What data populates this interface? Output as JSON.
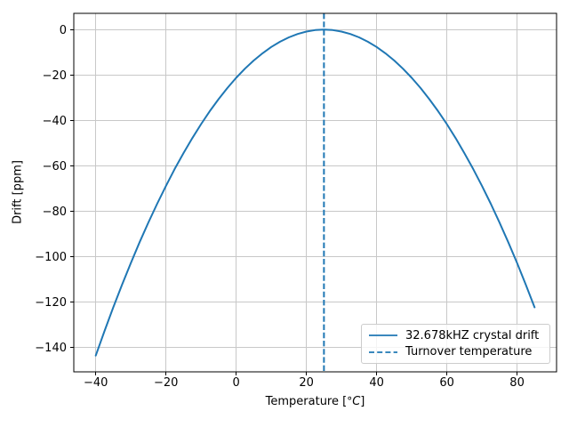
{
  "chart_data": {
    "type": "line",
    "title": "",
    "xlabel": "Temperature [°C]",
    "xlabel_parts": {
      "prefix": "Temperature [",
      "degree": "°",
      "unit": "C",
      "suffix": "]"
    },
    "ylabel": "Drift [ppm]",
    "xlim": [
      -46.25,
      91.25
    ],
    "ylim": [
      -150.83,
      7.18
    ],
    "grid": true,
    "legend_position": "lower right",
    "xticks": {
      "values": [
        -40,
        -20,
        0,
        20,
        40,
        60,
        80
      ],
      "labels": [
        "−40",
        "−20",
        "0",
        "20",
        "40",
        "60",
        "80"
      ]
    },
    "yticks": {
      "values": [
        0,
        -20,
        -40,
        -60,
        -80,
        -100,
        -120,
        -140
      ],
      "labels": [
        "0",
        "−20",
        "−40",
        "−60",
        "−80",
        "−100",
        "−120",
        "−140"
      ]
    },
    "series": [
      {
        "name": "32.678kHZ crystal drift",
        "type": "line",
        "linestyle": "solid",
        "color": "#1f77b4",
        "x": [
          -40,
          -37.5,
          -35,
          -32.5,
          -30,
          -27.5,
          -25,
          -22.5,
          -20,
          -17.5,
          -15,
          -12.5,
          -10,
          -7.5,
          -5,
          -2.5,
          0,
          2.5,
          5,
          7.5,
          10,
          12.5,
          15,
          17.5,
          20,
          22.5,
          25,
          27.5,
          30,
          32.5,
          35,
          37.5,
          40,
          42.5,
          45,
          47.5,
          50,
          52.5,
          55,
          57.5,
          60,
          62.5,
          65,
          67.5,
          70,
          72.5,
          75,
          77.5,
          80,
          82.5,
          85
        ],
        "y": [
          -143.65,
          -132.81,
          -122.4,
          -112.41,
          -102.85,
          -93.71,
          -85,
          -76.71,
          -68.85,
          -61.41,
          -54.4,
          -47.81,
          -41.65,
          -35.91,
          -30.6,
          -25.71,
          -21.25,
          -17.21,
          -13.6,
          -10.41,
          -7.65,
          -5.31,
          -3.4,
          -1.91,
          -0.85,
          -0.21,
          0,
          -0.21,
          -0.85,
          -1.91,
          -3.4,
          -5.31,
          -7.65,
          -10.41,
          -13.6,
          -17.21,
          -21.25,
          -25.71,
          -30.6,
          -35.91,
          -41.65,
          -47.81,
          -54.4,
          -61.41,
          -68.85,
          -76.71,
          -85,
          -93.71,
          -102.85,
          -112.41,
          -122.4
        ]
      },
      {
        "name": "Turnover temperature",
        "type": "vline",
        "linestyle": "dashed",
        "color": "#1f77b4",
        "x": 25
      }
    ],
    "style": {
      "grid_color": "#c8c8c8",
      "spine_color": "#000000",
      "background": "#ffffff"
    }
  }
}
